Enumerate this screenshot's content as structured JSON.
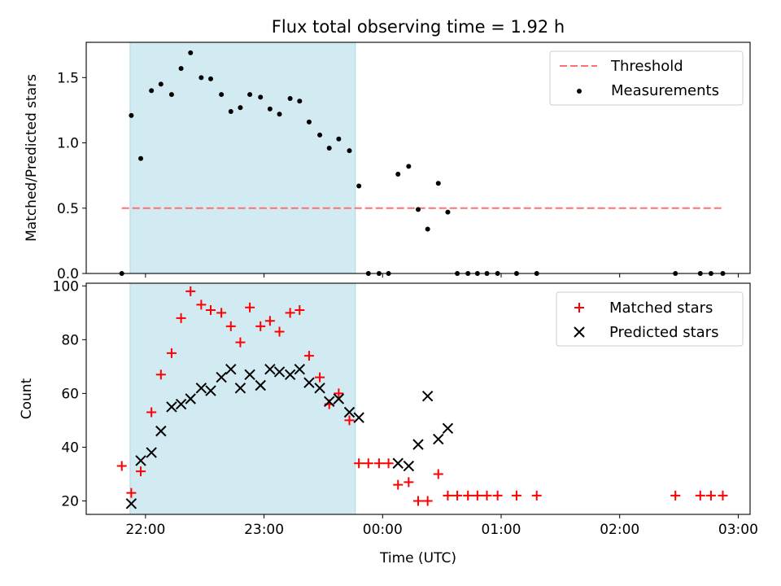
{
  "chart_data": [
    {
      "type": "scatter",
      "title": "Flux total observing time = 1.92 h",
      "xlabel": "",
      "ylabel": "Matched/Predicted stars",
      "ylim": [
        0,
        1.77
      ],
      "yticks": [
        "0.0",
        "0.5",
        "1.0",
        "1.5"
      ],
      "shaded_interval": {
        "start": 21.87,
        "end": 23.77,
        "color": "#add8e6"
      },
      "legend": {
        "position": "top-right",
        "entries": [
          "Threshold",
          "Measurements"
        ]
      },
      "threshold": {
        "name": "Threshold",
        "value": 0.5,
        "x_start": 21.8,
        "x_end": 26.87,
        "color": "#ff7070"
      },
      "series": [
        {
          "name": "Measurements",
          "color": "#000000",
          "x": [
            21.8,
            21.88,
            21.96,
            22.05,
            22.13,
            22.22,
            22.3,
            22.38,
            22.47,
            22.55,
            22.64,
            22.72,
            22.8,
            22.88,
            22.97,
            23.05,
            23.13,
            23.22,
            23.3,
            23.38,
            23.47,
            23.55,
            23.63,
            23.72,
            23.8,
            23.88,
            23.97,
            24.05,
            24.13,
            24.22,
            24.3,
            24.38,
            24.47,
            24.55,
            24.63,
            24.72,
            24.8,
            24.88,
            24.97,
            25.13,
            25.3,
            26.47,
            26.68,
            26.77,
            26.87
          ],
          "y": [
            0.0,
            1.21,
            0.88,
            1.4,
            1.45,
            1.37,
            1.57,
            1.69,
            1.5,
            1.49,
            1.37,
            1.24,
            1.27,
            1.37,
            1.35,
            1.26,
            1.22,
            1.34,
            1.32,
            1.16,
            1.06,
            0.96,
            1.03,
            0.94,
            0.67,
            0.0,
            0.0,
            0.0,
            0.76,
            0.82,
            0.49,
            0.34,
            0.69,
            0.47,
            0.0,
            0.0,
            0.0,
            0.0,
            0.0,
            0.0,
            0.0,
            0.0,
            0.0,
            0.0,
            0.0
          ]
        }
      ]
    },
    {
      "type": "scatter",
      "title": "",
      "xlabel": "Time (UTC)",
      "ylabel": "Count",
      "xlim": [
        21.5,
        27.1
      ],
      "ylim": [
        15,
        101
      ],
      "xticks": [
        {
          "value": 22,
          "label": "22:00"
        },
        {
          "value": 23,
          "label": "23:00"
        },
        {
          "value": 24,
          "label": "00:00"
        },
        {
          "value": 25,
          "label": "01:00"
        },
        {
          "value": 26,
          "label": "02:00"
        },
        {
          "value": 27,
          "label": "03:00"
        }
      ],
      "yticks": [
        "20",
        "40",
        "60",
        "80",
        "100"
      ],
      "shaded_interval": {
        "start": 21.87,
        "end": 23.77,
        "color": "#add8e6"
      },
      "legend": {
        "position": "top-right",
        "entries": [
          "Matched stars",
          "Predicted stars"
        ]
      },
      "series": [
        {
          "name": "Matched stars",
          "marker": "plus",
          "color": "#ff0000",
          "x": [
            21.8,
            21.88,
            21.96,
            22.05,
            22.13,
            22.22,
            22.3,
            22.38,
            22.47,
            22.55,
            22.64,
            22.72,
            22.8,
            22.88,
            22.97,
            23.05,
            23.13,
            23.22,
            23.3,
            23.38,
            23.47,
            23.55,
            23.63,
            23.72,
            23.8,
            23.88,
            23.97,
            24.05,
            24.13,
            24.22,
            24.3,
            24.38,
            24.47,
            24.55,
            24.63,
            24.72,
            24.8,
            24.88,
            24.97,
            25.13,
            25.3,
            26.47,
            26.68,
            26.77,
            26.87
          ],
          "y": [
            33,
            23,
            31,
            53,
            67,
            75,
            88,
            98,
            93,
            91,
            90,
            85,
            79,
            92,
            85,
            87,
            83,
            90,
            91,
            74,
            66,
            56,
            60,
            50,
            34,
            34,
            34,
            34,
            26,
            27,
            20,
            20,
            30,
            22,
            22,
            22,
            22,
            22,
            22,
            22,
            22,
            22,
            22,
            22,
            22
          ]
        },
        {
          "name": "Predicted stars",
          "marker": "x",
          "color": "#000000",
          "x": [
            21.88,
            21.96,
            22.05,
            22.13,
            22.22,
            22.3,
            22.38,
            22.47,
            22.55,
            22.64,
            22.72,
            22.8,
            22.88,
            22.97,
            23.05,
            23.13,
            23.22,
            23.3,
            23.38,
            23.47,
            23.55,
            23.63,
            23.72,
            23.8,
            24.13,
            24.22,
            24.3,
            24.38,
            24.47,
            24.55
          ],
          "y": [
            19,
            35,
            38,
            46,
            55,
            56,
            58,
            62,
            61,
            66,
            69,
            62,
            67,
            63,
            69,
            68,
            67,
            69,
            64,
            62,
            57,
            58,
            53,
            51,
            34,
            33,
            41,
            59,
            43,
            47
          ]
        }
      ]
    }
  ]
}
